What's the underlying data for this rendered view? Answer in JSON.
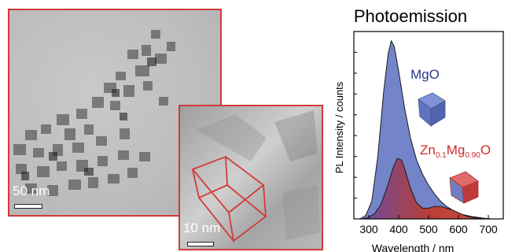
{
  "tem_large": {
    "scale_label": "50 nm"
  },
  "tem_zoom": {
    "scale_label": "10 nm"
  },
  "chart_data": {
    "type": "area",
    "title": "Photoemission",
    "xlabel": "Wavelength / nm",
    "ylabel": "PL Intensity / counts",
    "xlim": [
      250,
      750
    ],
    "xticks": [
      300,
      400,
      500,
      600,
      700
    ],
    "series": [
      {
        "name": "MgO",
        "color": "#5b6fbf",
        "x": [
          270,
          290,
          310,
          330,
          350,
          365,
          375,
          385,
          400,
          420,
          440,
          460,
          480,
          500,
          520,
          540,
          560,
          580,
          600,
          640,
          680,
          710
        ],
        "y": [
          0.0,
          0.02,
          0.1,
          0.35,
          0.72,
          0.93,
          1.0,
          0.97,
          0.83,
          0.62,
          0.45,
          0.33,
          0.25,
          0.19,
          0.14,
          0.1,
          0.07,
          0.05,
          0.03,
          0.015,
          0.005,
          0.0
        ]
      },
      {
        "name": "Zn0.1Mg0.90O",
        "color": "#c0392b",
        "x": [
          280,
          300,
          320,
          340,
          360,
          380,
          395,
          410,
          420,
          440,
          460,
          480,
          500,
          520,
          540,
          560,
          580,
          600,
          620,
          640,
          660,
          690
        ],
        "y": [
          0.0,
          0.01,
          0.03,
          0.08,
          0.17,
          0.28,
          0.34,
          0.33,
          0.28,
          0.17,
          0.09,
          0.06,
          0.06,
          0.07,
          0.07,
          0.06,
          0.05,
          0.035,
          0.02,
          0.01,
          0.005,
          0.0
        ]
      }
    ],
    "annotations": {
      "mgo": {
        "text": "MgO"
      },
      "zn": {
        "prefix": "Zn",
        "sub1": "0.1",
        "mid": "Mg",
        "sub2": "0.90",
        "suffix": "O"
      }
    }
  }
}
